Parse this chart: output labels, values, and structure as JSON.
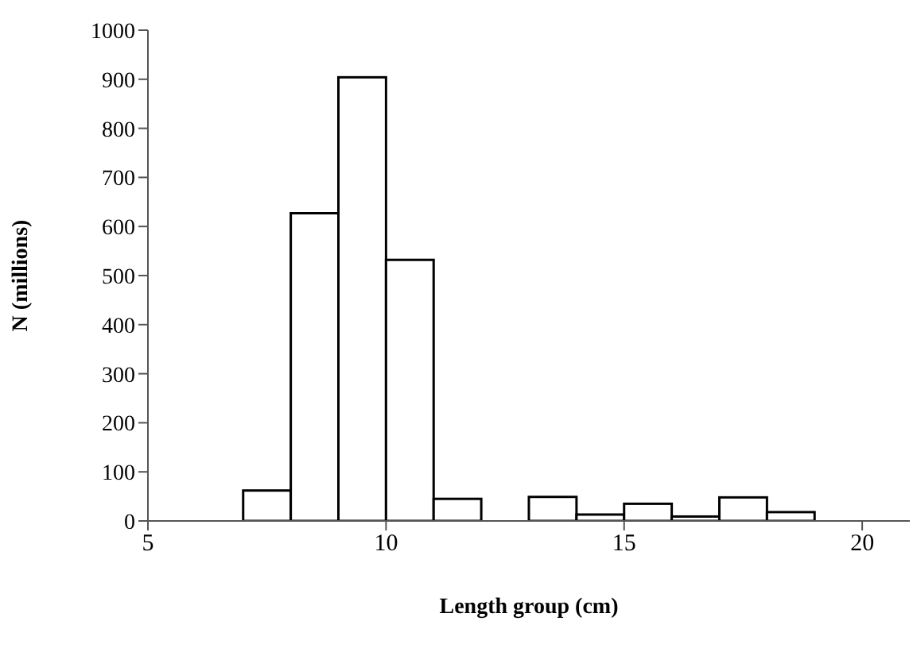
{
  "chart_data": {
    "type": "histogram",
    "xlabel": "Length group (cm)",
    "ylabel": "N (millions)",
    "bins": [
      7,
      8,
      9,
      10,
      11,
      12,
      13,
      14,
      15,
      16,
      17,
      18,
      19
    ],
    "values": [
      62,
      627,
      904,
      532,
      45,
      0,
      49,
      13,
      35,
      9,
      48,
      18
    ],
    "color": "#ffffff",
    "xlim": [
      5,
      21
    ],
    "xticks": [
      5,
      10,
      15,
      20
    ],
    "ylim": [
      0,
      1000
    ],
    "yticks": [
      0,
      100,
      200,
      300,
      400,
      500,
      600,
      700,
      800,
      900,
      1000
    ],
    "grid": false,
    "legend": false
  }
}
